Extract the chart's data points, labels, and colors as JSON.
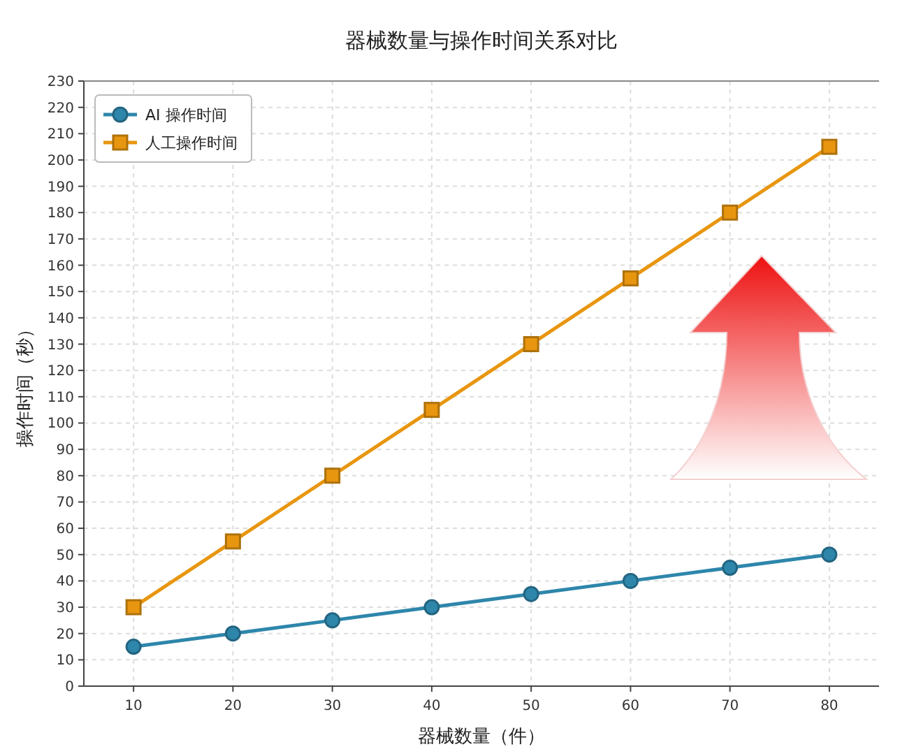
{
  "chart_data": {
    "type": "line",
    "title": "器械数量与操作时间关系对比",
    "xlabel": "器械数量（件）",
    "ylabel": "操作时间（秒）",
    "x": [
      10,
      20,
      30,
      40,
      50,
      60,
      70,
      80
    ],
    "series": [
      {
        "name": "AI 操作时间",
        "color": "#2e86ab",
        "marker": "circle",
        "values": [
          15,
          20,
          25,
          30,
          35,
          40,
          45,
          50
        ]
      },
      {
        "name": "人工操作时间",
        "color": "#e8960f",
        "marker": "square",
        "values": [
          30,
          55,
          80,
          105,
          130,
          155,
          180,
          205
        ]
      }
    ],
    "xlim": [
      5,
      85
    ],
    "xticks": [
      10,
      20,
      30,
      40,
      50,
      60,
      70,
      80
    ],
    "ylim": [
      0,
      230
    ],
    "yticks": [
      0,
      10,
      20,
      30,
      40,
      50,
      60,
      70,
      80,
      90,
      100,
      110,
      120,
      130,
      140,
      150,
      160,
      170,
      180,
      190,
      200,
      210,
      220,
      230
    ],
    "grid": true,
    "legend": "top left",
    "line_style": "solid"
  }
}
